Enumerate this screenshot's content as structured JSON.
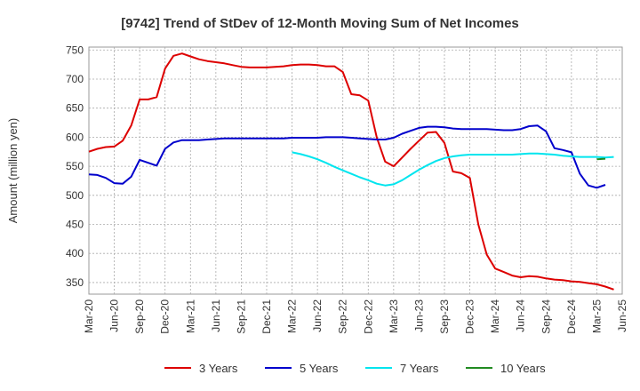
{
  "chart_data": {
    "type": "line",
    "title": "[9742]  Trend of StDev of 12-Month Moving Sum of Net Incomes",
    "xlabel": "",
    "ylabel": "Amount (million yen)",
    "ylim": [
      330,
      755
    ],
    "yticks": [
      350,
      400,
      450,
      500,
      550,
      600,
      650,
      700,
      750
    ],
    "xticks": [
      "Mar-20",
      "Jun-20",
      "Sep-20",
      "Dec-20",
      "Mar-21",
      "Jun-21",
      "Sep-21",
      "Dec-21",
      "Mar-22",
      "Jun-22",
      "Sep-22",
      "Dec-22",
      "Mar-23",
      "Jun-23",
      "Sep-23",
      "Dec-23",
      "Mar-24",
      "Jun-24",
      "Sep-24",
      "Dec-24",
      "Mar-25",
      "Jun-25"
    ],
    "grid": true,
    "legend_position": "bottom",
    "series": [
      {
        "name": "3 Years",
        "color": "#dd0000",
        "start_month": 0,
        "values": [
          575,
          580,
          583,
          584,
          594,
          620,
          665,
          665,
          669,
          718,
          740,
          744,
          739,
          734,
          731,
          729,
          727,
          724,
          721,
          720,
          720,
          720,
          721,
          722,
          724,
          725,
          725,
          724,
          722,
          722,
          712,
          674,
          672,
          663,
          600,
          558,
          550,
          565,
          580,
          594,
          608,
          609,
          590,
          541,
          538,
          530,
          450,
          398,
          374,
          368,
          362,
          359,
          361,
          360,
          357,
          355,
          354,
          352,
          351,
          349,
          347,
          343,
          338
        ]
      },
      {
        "name": "5 Years",
        "color": "#0000cc",
        "start_month": 0,
        "values": [
          536,
          535,
          530,
          521,
          520,
          532,
          561,
          556,
          551,
          580,
          591,
          595,
          595,
          595,
          596,
          597,
          598,
          598,
          598,
          598,
          598,
          598,
          598,
          598,
          599,
          599,
          599,
          599,
          600,
          600,
          600,
          599,
          598,
          597,
          596,
          596,
          599,
          606,
          611,
          616,
          618,
          618,
          617,
          615,
          614,
          614,
          614,
          614,
          613,
          612,
          612,
          614,
          619,
          620,
          610,
          581,
          578,
          574,
          537,
          517,
          513,
          518
        ]
      },
      {
        "name": "7 Years",
        "color": "#00e5ee",
        "start_month": 24,
        "values": [
          574,
          571,
          567,
          562,
          556,
          549,
          543,
          537,
          531,
          526,
          520,
          517,
          519,
          526,
          535,
          544,
          552,
          559,
          564,
          567,
          569,
          570,
          570,
          570,
          570,
          570,
          570,
          571,
          572,
          572,
          571,
          570,
          568,
          567,
          566,
          566,
          566,
          565,
          566
        ]
      },
      {
        "name": "10 Years",
        "color": "#228b22",
        "start_month": 60,
        "values": [
          562,
          563
        ]
      }
    ]
  }
}
